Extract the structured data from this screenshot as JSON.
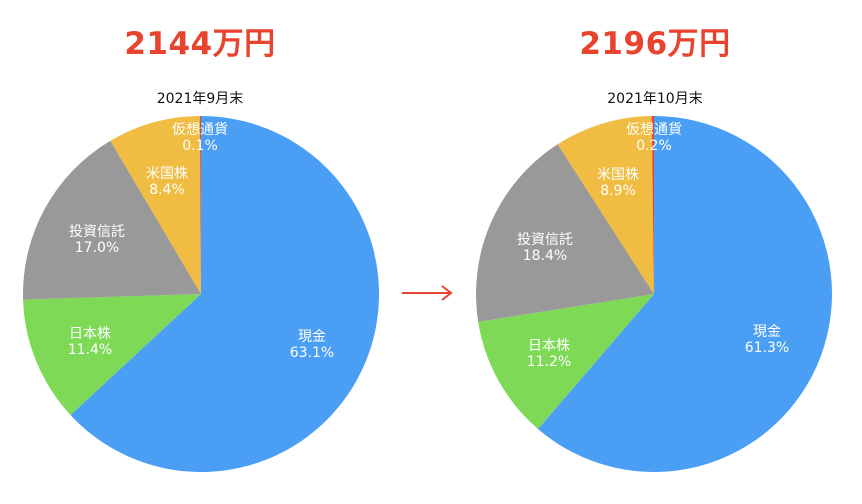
{
  "totals": {
    "left": "2144万円",
    "right": "2196万円"
  },
  "chart_data": [
    {
      "type": "pie",
      "title": "2021年9月末",
      "slices": [
        {
          "label": "現金",
          "value": 63.1,
          "display": "63.1%",
          "color": "#4a9ff5"
        },
        {
          "label": "日本株",
          "value": 11.4,
          "display": "11.4%",
          "color": "#7ed957"
        },
        {
          "label": "投資信託",
          "value": 17.0,
          "display": "17.0%",
          "color": "#999999"
        },
        {
          "label": "米国株",
          "value": 8.4,
          "display": "8.4%",
          "color": "#f0bc41"
        },
        {
          "label": "仮想通貨",
          "value": 0.1,
          "display": "0.1%",
          "color": "#e8432f"
        }
      ]
    },
    {
      "type": "pie",
      "title": "2021年10月末",
      "slices": [
        {
          "label": "現金",
          "value": 61.3,
          "display": "61.3%",
          "color": "#4a9ff5"
        },
        {
          "label": "日本株",
          "value": 11.2,
          "display": "11.2%",
          "color": "#7ed957"
        },
        {
          "label": "投資信託",
          "value": 18.4,
          "display": "18.4%",
          "color": "#999999"
        },
        {
          "label": "米国株",
          "value": 8.9,
          "display": "8.9%",
          "color": "#f0bc41"
        },
        {
          "label": "仮想通貨",
          "value": 0.2,
          "display": "0.2%",
          "color": "#e8432f"
        }
      ]
    }
  ],
  "arrow": {
    "color": "#e8432f"
  }
}
